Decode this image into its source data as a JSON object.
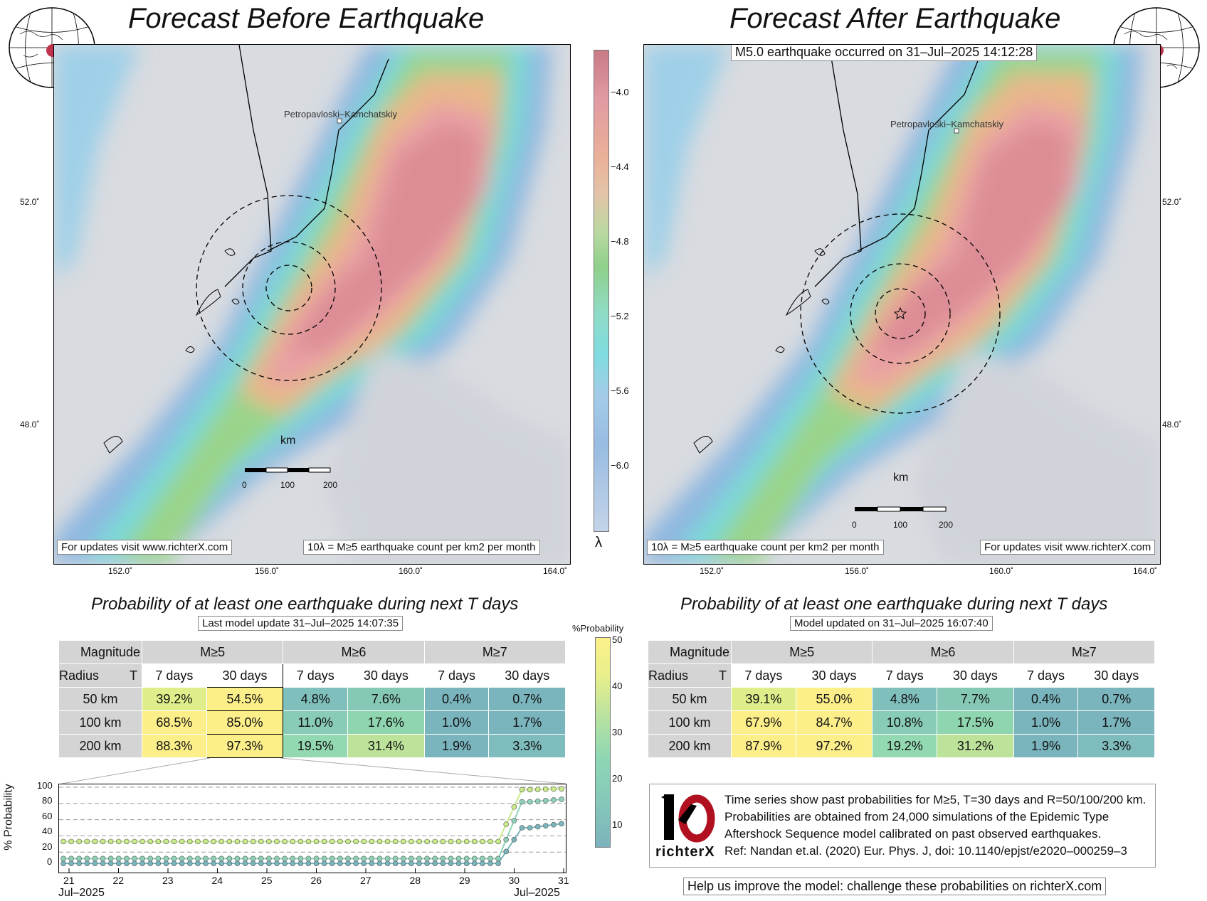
{
  "left_panel": {
    "title": "Forecast Before Earthquake",
    "city_label": "Petropavloski–Kamchatskiy",
    "footer_link": "For updates visit www.richterX.com",
    "legend_text": "10λ = M≥5 earthquake count per km2 per month",
    "scale_title": "km",
    "scale_ticks": [
      "0",
      "100",
      "200"
    ],
    "lat_ticks": [
      "52.0˚",
      "48.0˚"
    ],
    "lon_ticks": [
      "152.0˚",
      "156.0˚",
      "160.0˚",
      "164.0˚"
    ]
  },
  "right_panel": {
    "title": "Forecast After Earthquake",
    "event_label": "M5.0 earthquake occurred on 31–Jul–2025 14:12:28",
    "city_label": "Petropavloski–Kamchatskiy",
    "footer_link": "For updates visit www.richterX.com",
    "legend_text": "10λ = M≥5 earthquake count per km2 per month",
    "scale_title": "km",
    "scale_ticks": [
      "0",
      "100",
      "200"
    ],
    "lat_ticks": [
      "52.0˚",
      "48.0˚"
    ],
    "lon_ticks": [
      "152.0˚",
      "156.0˚",
      "160.0˚",
      "164.0˚"
    ]
  },
  "map_colorbar": {
    "symbol": "λ",
    "ticks": [
      "−4.0",
      "−4.4",
      "−4.8",
      "−5.2",
      "−5.6",
      "−6.0"
    ]
  },
  "prob_colorbar": {
    "title": "%Probability",
    "ticks": [
      "50",
      "40",
      "30",
      "20",
      "10"
    ]
  },
  "prob_tables": [
    {
      "title": "Probability of at least one earthquake during next T days",
      "subtitle": "Last model update 31–Jul–2025 14:07:35",
      "corner_top": "Magnitude",
      "corner_left": "Radius",
      "corner_right": "T",
      "magnitudes": [
        "M≥5",
        "M≥6",
        "M≥7"
      ],
      "periods": [
        "7 days",
        "30 days",
        "7 days",
        "30 days",
        "7 days",
        "30 days"
      ],
      "rows": [
        {
          "radius": "50 km",
          "values": [
            "39.2%",
            "54.5%",
            "4.8%",
            "7.6%",
            "0.4%",
            "0.7%"
          ]
        },
        {
          "radius": "100 km",
          "values": [
            "68.5%",
            "85.0%",
            "11.0%",
            "17.6%",
            "1.0%",
            "1.7%"
          ]
        },
        {
          "radius": "200 km",
          "values": [
            "88.3%",
            "97.3%",
            "19.5%",
            "31.4%",
            "1.9%",
            "3.3%"
          ]
        }
      ]
    },
    {
      "title": "Probability of at least one earthquake during next T days",
      "subtitle": "Model updated on 31–Jul–2025 16:07:40",
      "corner_top": "Magnitude",
      "corner_left": "Radius",
      "corner_right": "T",
      "magnitudes": [
        "M≥5",
        "M≥6",
        "M≥7"
      ],
      "periods": [
        "7 days",
        "30 days",
        "7 days",
        "30 days",
        "7 days",
        "30 days"
      ],
      "rows": [
        {
          "radius": "50 km",
          "values": [
            "39.1%",
            "55.0%",
            "4.8%",
            "7.7%",
            "0.4%",
            "0.7%"
          ]
        },
        {
          "radius": "100 km",
          "values": [
            "67.9%",
            "84.7%",
            "10.8%",
            "17.5%",
            "1.0%",
            "1.7%"
          ]
        },
        {
          "radius": "200 km",
          "values": [
            "87.9%",
            "97.2%",
            "19.2%",
            "31.2%",
            "1.9%",
            "3.3%"
          ]
        }
      ]
    }
  ],
  "timeseries": {
    "ylabel": "% Probability",
    "yticks": [
      "100",
      "80",
      "60",
      "40",
      "20",
      "0"
    ],
    "xticks": [
      "21",
      "22",
      "23",
      "24",
      "25",
      "26",
      "27",
      "28",
      "29",
      "30",
      "31"
    ],
    "xlabel_left": "Jul–2025",
    "xlabel_right": "Jul–2025"
  },
  "info": {
    "logo_text": "richterX",
    "lines": [
      "Time series show past probabilities for M≥5, T=30 days and R=50/100/200 km.",
      "Probabilities are obtained from 24,000 simulations of the Epidemic Type",
      "Aftershock Sequence model calibrated on past observed earthquakes.",
      "Ref: Nandan et.al. (2020) Eur. Phys. J, doi: 10.1140/epjst/e2020–000259–3"
    ],
    "help": "Help us improve the model: challenge these probabilities on richterX.com"
  }
}
